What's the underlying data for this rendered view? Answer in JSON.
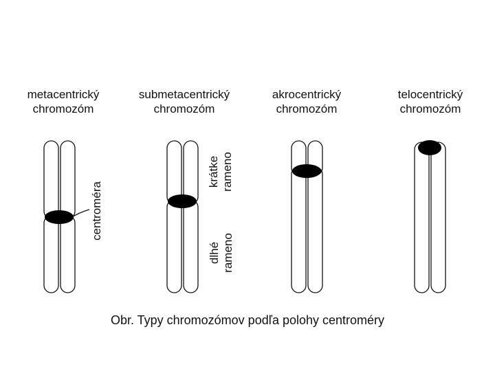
{
  "types": [
    {
      "line1": "metacentrický",
      "line2": "chromozóm"
    },
    {
      "line1": "submetacentrický",
      "line2": "chromozóm"
    },
    {
      "line1": "akrocentrický",
      "line2": "chromozóm"
    },
    {
      "line1": "telocentrický",
      "line2": "chromozóm"
    }
  ],
  "annotations": {
    "centromere": "centroméra",
    "short_arm_1": "krátke",
    "short_arm_2": "rameno",
    "long_arm_1": "dlhé",
    "long_arm_2": "rameno"
  },
  "caption": "Obr. Typy chromozómov podľa polohy centroméry",
  "colors": {
    "stroke": "#111111",
    "centromere": "#000000"
  }
}
